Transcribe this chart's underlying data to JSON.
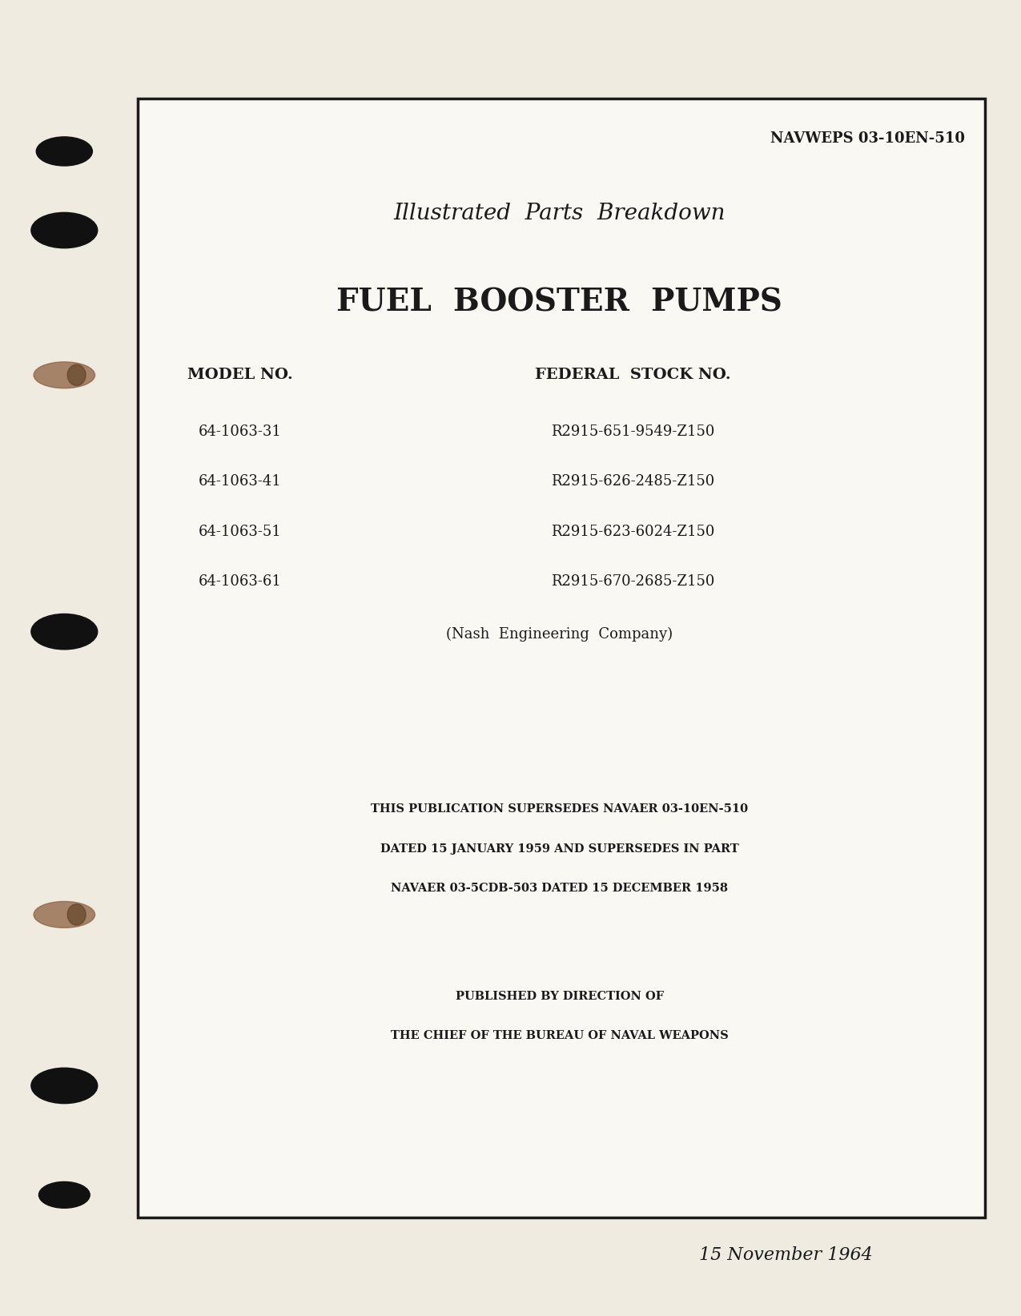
{
  "page_bg": "#f0ebe0",
  "box_color": "#faf8f2",
  "text_color": "#1a1a1a",
  "border_color": "#1a1a1a",
  "doc_number": "NAVWEPS 03-10EN-510",
  "title1": "Illustrated  Parts  Breakdown",
  "title2": "FUEL  BOOSTER  PUMPS",
  "model_header": "MODEL NO.",
  "stock_header": "FEDERAL  STOCK NO.",
  "models": [
    "64-1063-31",
    "64-1063-41",
    "64-1063-51",
    "64-1063-61"
  ],
  "stocks": [
    "R2915-651-9549-Z150",
    "R2915-626-2485-Z150",
    "R2915-623-6024-Z150",
    "R2915-670-2685-Z150"
  ],
  "company": "(Nash  Engineering  Company)",
  "supersedes_line1": "THIS PUBLICATION SUPERSEDES NAVAER 03-10EN-510",
  "supersedes_line2": "DATED 15 JANUARY 1959 AND SUPERSEDES IN PART",
  "supersedes_line3": "NAVAER 03-5CDB-503 DATED 15 DECEMBER 1958",
  "published_line1": "PUBLISHED BY DIRECTION OF",
  "published_line2": "THE CHIEF OF THE BUREAU OF NAVAL WEAPONS",
  "date": "15 November 1964"
}
